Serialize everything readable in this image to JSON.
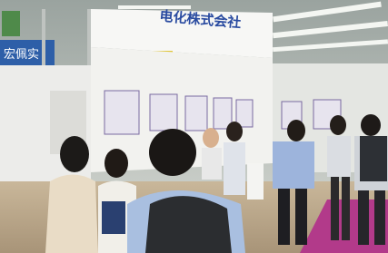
{
  "signs": {
    "main": "电化株式会社",
    "left": "宏佩实"
  }
}
